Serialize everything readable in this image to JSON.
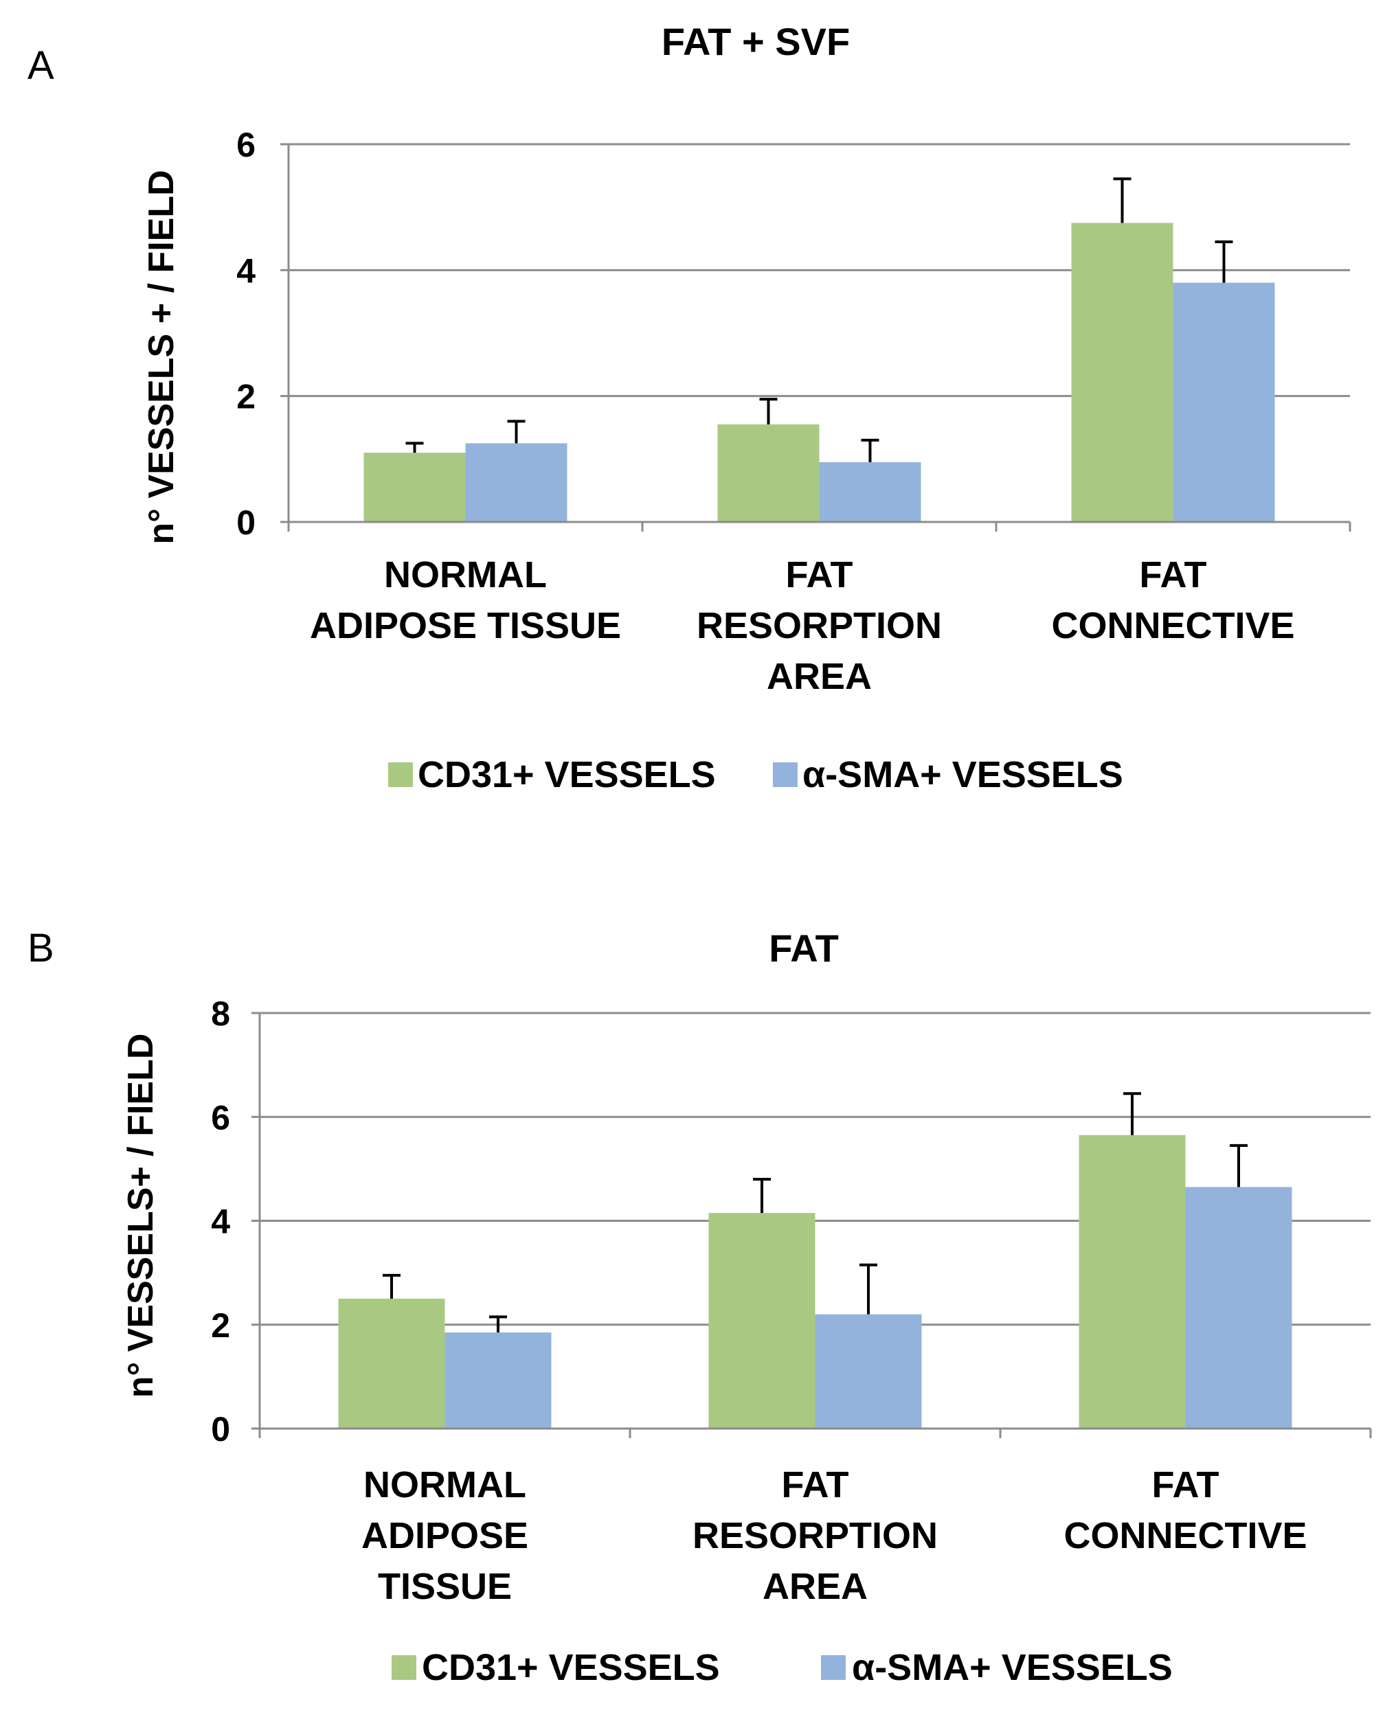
{
  "chart_data": [
    {
      "type": "bar",
      "panel_label": "A",
      "title": "FAT + SVF",
      "ylabel": "n° VESSELS + / FIELD",
      "xlabel": "",
      "ylim": [
        0,
        6
      ],
      "yticks": [
        "0",
        "2",
        "4",
        "6"
      ],
      "grid": true,
      "categories": [
        [
          "NORMAL",
          "ADIPOSE TISSUE"
        ],
        [
          "FAT",
          "RESORPTION",
          "AREA"
        ],
        [
          "FAT",
          "CONNECTIVE"
        ]
      ],
      "series": [
        {
          "name": "CD31+ VESSELS",
          "color": "#a9c983",
          "values": [
            1.1,
            1.55,
            4.75
          ],
          "errors": [
            0.15,
            0.4,
            0.7
          ]
        },
        {
          "name": "α-SMA+ VESSELS",
          "color": "#93b3dc",
          "values": [
            1.25,
            0.95,
            3.8
          ],
          "errors": [
            0.35,
            0.35,
            0.65
          ]
        }
      ],
      "legend_position": "bottom"
    },
    {
      "type": "bar",
      "panel_label": "B",
      "title": "FAT",
      "ylabel": "n° VESSELS+ / FIELD",
      "xlabel": "",
      "ylim": [
        0,
        8
      ],
      "yticks": [
        "0",
        "2",
        "4",
        "6",
        "8"
      ],
      "grid": true,
      "categories": [
        [
          "NORMAL",
          "ADIPOSE",
          "TISSUE"
        ],
        [
          "FAT",
          "RESORPTION",
          "AREA"
        ],
        [
          "FAT",
          "CONNECTIVE"
        ]
      ],
      "series": [
        {
          "name": "CD31+ VESSELS",
          "color": "#a9c983",
          "values": [
            2.5,
            4.15,
            5.65
          ],
          "errors": [
            0.45,
            0.65,
            0.8
          ]
        },
        {
          "name": "α-SMA+ VESSELS",
          "color": "#93b3dc",
          "values": [
            1.85,
            2.2,
            4.65
          ],
          "errors": [
            0.3,
            0.95,
            0.8
          ]
        }
      ],
      "legend_position": "bottom"
    }
  ]
}
